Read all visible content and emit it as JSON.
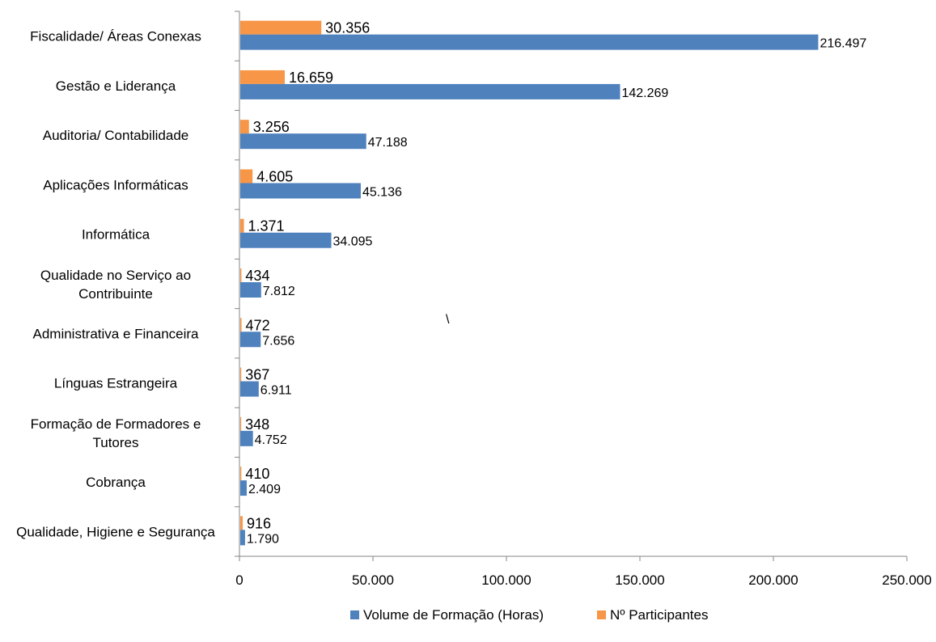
{
  "chart_data": {
    "type": "bar",
    "orientation": "horizontal",
    "categories": [
      [
        "Fiscalidade/ Áreas Conexas"
      ],
      [
        "Gestão e Liderança"
      ],
      [
        "Auditoria/ Contabilidade"
      ],
      [
        "Aplicações Informáticas"
      ],
      [
        "Informática"
      ],
      [
        "Qualidade no Serviço ao",
        "Contribuinte"
      ],
      [
        "Administrativa e Financeira"
      ],
      [
        "Línguas Estrangeira"
      ],
      [
        "Formação de Formadores e",
        "Tutores"
      ],
      [
        "Cobrança"
      ],
      [
        "Qualidade, Higiene e Segurança"
      ]
    ],
    "series": [
      {
        "name": "Volume de Formação  (Horas)",
        "color": "#4F81BD",
        "values": [
          216497,
          142269,
          47188,
          45136,
          34095,
          7812,
          7656,
          6911,
          4752,
          2409,
          1790
        ],
        "labels": [
          "216.497",
          "142.269",
          "47.188",
          "45.136",
          "34.095",
          "7.812",
          "7.656",
          "6.911",
          "4.752",
          "2.409",
          "1.790"
        ]
      },
      {
        "name": "Nº Participantes",
        "color": "#F79646",
        "values": [
          30356,
          16659,
          3256,
          4605,
          1371,
          434,
          472,
          367,
          348,
          410,
          916
        ],
        "labels": [
          "30.356",
          "16.659",
          "3.256",
          "4.605",
          "1.371",
          "434",
          "472",
          "367",
          "348",
          "410",
          "916"
        ]
      }
    ],
    "xlim": [
      0,
      250000
    ],
    "xticks": [
      0,
      50000,
      100000,
      150000,
      200000,
      250000
    ],
    "xtick_labels": [
      "0",
      "50.000",
      "100.000",
      "150.000",
      "200.000",
      "250.000"
    ],
    "grid": false,
    "legend_position": "bottom",
    "annotation": "\\"
  }
}
